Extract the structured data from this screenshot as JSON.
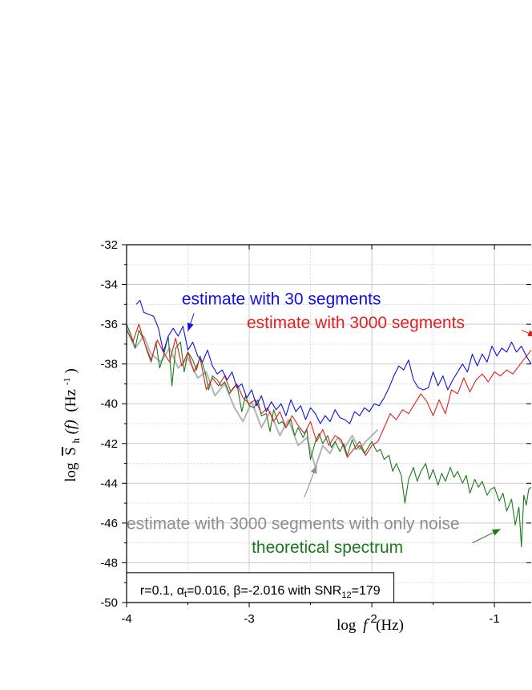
{
  "chart_data": {
    "type": "line",
    "xlabel": {
      "base": "log",
      "var": "f",
      "unit": "(Hz)"
    },
    "ylabel": {
      "base": "log",
      "sym": "S",
      "sub": "h",
      "arg": "(f)",
      "unit": "(Hz",
      "exp": "-1",
      "close": ")"
    },
    "xlim": [
      -4,
      -0.7
    ],
    "ylim": [
      -50,
      -32
    ],
    "x_ticks": [
      -4,
      -3,
      -2,
      -1
    ],
    "x_tick_labels": [
      "-4",
      "-3",
      "-2",
      "-1"
    ],
    "y_ticks": [
      -50,
      -48,
      -46,
      -44,
      -42,
      -40,
      -38,
      -36,
      -34,
      -32
    ],
    "y_tick_labels": [
      "-50",
      "-48",
      "-46",
      "-44",
      "-42",
      "-40",
      "-38",
      "-36",
      "-34",
      "-32"
    ],
    "grid": true,
    "series": [
      {
        "name": "estimate with 3000 segments  with only noise",
        "color": "#b4b4b4",
        "x": [
          -4.0,
          -3.93,
          -3.86,
          -3.8,
          -3.72,
          -3.65,
          -3.58,
          -3.5,
          -3.42,
          -3.35,
          -3.28,
          -3.2,
          -3.12,
          -3.05,
          -2.98,
          -2.9,
          -2.83,
          -2.75,
          -2.68,
          -2.6,
          -2.53,
          -2.46,
          -2.4,
          -2.34,
          -2.28,
          -2.22,
          -2.16,
          -2.1,
          -2.05,
          -2.0,
          -1.95
        ],
        "y": [
          -36.2,
          -37.2,
          -36.6,
          -37.5,
          -37.9,
          -37.2,
          -38.2,
          -37.7,
          -38.7,
          -38.4,
          -39.6,
          -39.0,
          -40.2,
          -40.9,
          -39.9,
          -41.2,
          -40.4,
          -41.6,
          -40.8,
          -42.1,
          -41.7,
          -43.2,
          -42.1,
          -42.5,
          -41.7,
          -42.2,
          -41.6,
          -42.3,
          -41.9,
          -41.6,
          -41.3
        ]
      },
      {
        "name": "theoretical spectrum",
        "color": "#1a7a1a",
        "x": [
          -4.0,
          -3.96,
          -3.93,
          -3.9,
          -3.86,
          -3.83,
          -3.8,
          -3.76,
          -3.73,
          -3.7,
          -3.66,
          -3.63,
          -3.6,
          -3.56,
          -3.53,
          -3.5,
          -3.46,
          -3.43,
          -3.4,
          -3.36,
          -3.33,
          -3.3,
          -3.26,
          -3.23,
          -3.2,
          -3.16,
          -3.13,
          -3.1,
          -3.06,
          -3.03,
          -3.0,
          -2.96,
          -2.93,
          -2.9,
          -2.86,
          -2.83,
          -2.8,
          -2.76,
          -2.73,
          -2.7,
          -2.66,
          -2.63,
          -2.6,
          -2.56,
          -2.53,
          -2.5,
          -2.46,
          -2.43,
          -2.4,
          -2.36,
          -2.33,
          -2.3,
          -2.26,
          -2.23,
          -2.2,
          -2.16,
          -2.13,
          -2.1,
          -2.06,
          -2.03,
          -2.0,
          -1.96,
          -1.93,
          -1.9,
          -1.86,
          -1.83,
          -1.8,
          -1.76,
          -1.73,
          -1.7,
          -1.66,
          -1.63,
          -1.6,
          -1.56,
          -1.53,
          -1.5,
          -1.46,
          -1.43,
          -1.4,
          -1.36,
          -1.33,
          -1.3,
          -1.26,
          -1.23,
          -1.2,
          -1.16,
          -1.13,
          -1.1,
          -1.06,
          -1.03,
          -1.0,
          -0.96,
          -0.93,
          -0.9,
          -0.86,
          -0.83,
          -0.8,
          -0.78,
          -0.76,
          -0.74,
          -0.72,
          -0.7
        ],
        "y": [
          -36.0,
          -36.6,
          -37.2,
          -36.3,
          -36.8,
          -37.4,
          -37.9,
          -36.9,
          -38.2,
          -37.6,
          -36.6,
          -39.1,
          -37.2,
          -36.9,
          -38.4,
          -37.4,
          -37.8,
          -38.3,
          -37.6,
          -38.4,
          -39.3,
          -38.6,
          -38.8,
          -39.1,
          -38.9,
          -39.5,
          -39.2,
          -39.0,
          -40.4,
          -39.6,
          -40.1,
          -40.2,
          -39.8,
          -40.6,
          -40.5,
          -41.4,
          -40.3,
          -41.0,
          -40.9,
          -41.2,
          -40.8,
          -41.6,
          -41.2,
          -41.7,
          -41.3,
          -42.8,
          -41.9,
          -41.5,
          -42.0,
          -41.6,
          -42.2,
          -41.9,
          -42.4,
          -42.0,
          -42.6,
          -41.8,
          -42.3,
          -42.1,
          -42.5,
          -42.2,
          -41.9,
          -42.4,
          -42.3,
          -42.8,
          -42.6,
          -43.4,
          -43.0,
          -43.6,
          -45.0,
          -43.8,
          -43.2,
          -43.9,
          -43.4,
          -43.0,
          -43.8,
          -43.3,
          -44.1,
          -43.5,
          -43.9,
          -43.2,
          -43.7,
          -43.4,
          -44.0,
          -43.6,
          -44.5,
          -43.8,
          -44.2,
          -43.9,
          -44.6,
          -44.3,
          -44.2,
          -44.9,
          -44.5,
          -45.4,
          -44.8,
          -46.1,
          -45.2,
          -47.2,
          -44.6,
          -45.1,
          -44.3,
          -44.2
        ]
      },
      {
        "name": "estimate with 3000 segments",
        "color": "#e02020",
        "x": [
          -4.0,
          -3.95,
          -3.9,
          -3.85,
          -3.8,
          -3.75,
          -3.7,
          -3.65,
          -3.6,
          -3.55,
          -3.5,
          -3.45,
          -3.4,
          -3.35,
          -3.3,
          -3.25,
          -3.2,
          -3.15,
          -3.1,
          -3.05,
          -3.0,
          -2.95,
          -2.9,
          -2.85,
          -2.8,
          -2.75,
          -2.7,
          -2.65,
          -2.6,
          -2.55,
          -2.5,
          -2.45,
          -2.4,
          -2.35,
          -2.3,
          -2.25,
          -2.2,
          -2.15,
          -2.1,
          -2.05,
          -2.0,
          -1.95,
          -1.9,
          -1.85,
          -1.8,
          -1.75,
          -1.7,
          -1.65,
          -1.6,
          -1.55,
          -1.5,
          -1.45,
          -1.4,
          -1.35,
          -1.3,
          -1.25,
          -1.2,
          -1.15,
          -1.1,
          -1.05,
          -1.0,
          -0.95,
          -0.9,
          -0.85,
          -0.8,
          -0.75,
          -0.7
        ],
        "y": [
          -36.3,
          -36.9,
          -36.0,
          -37.0,
          -37.8,
          -36.8,
          -37.4,
          -37.9,
          -36.7,
          -38.1,
          -37.4,
          -38.4,
          -37.7,
          -39.3,
          -38.7,
          -39.1,
          -38.6,
          -39.4,
          -39.0,
          -39.7,
          -40.0,
          -39.8,
          -40.5,
          -40.2,
          -40.9,
          -40.4,
          -41.2,
          -40.6,
          -41.1,
          -41.5,
          -40.9,
          -41.9,
          -41.3,
          -42.1,
          -41.6,
          -41.8,
          -42.7,
          -42.3,
          -41.9,
          -42.6,
          -42.1,
          -41.9,
          -41.2,
          -40.5,
          -40.8,
          -40.3,
          -40.5,
          -40.0,
          -39.5,
          -39.9,
          -40.6,
          -39.8,
          -40.5,
          -39.3,
          -39.5,
          -38.7,
          -39.4,
          -38.8,
          -38.5,
          -38.9,
          -38.4,
          -38.6,
          -38.3,
          -38.5,
          -38.1,
          -37.7,
          -37.3
        ]
      },
      {
        "name": "estimate with 30 segments",
        "color": "#1010e0",
        "x": [
          -3.92,
          -3.89,
          -3.86,
          -3.82,
          -3.78,
          -3.74,
          -3.7,
          -3.66,
          -3.62,
          -3.58,
          -3.54,
          -3.5,
          -3.46,
          -3.42,
          -3.38,
          -3.34,
          -3.3,
          -3.26,
          -3.22,
          -3.18,
          -3.14,
          -3.1,
          -3.06,
          -3.02,
          -2.98,
          -2.94,
          -2.9,
          -2.86,
          -2.82,
          -2.78,
          -2.74,
          -2.7,
          -2.66,
          -2.62,
          -2.58,
          -2.54,
          -2.5,
          -2.46,
          -2.42,
          -2.38,
          -2.34,
          -2.3,
          -2.26,
          -2.22,
          -2.18,
          -2.14,
          -2.1,
          -2.06,
          -2.02,
          -1.98,
          -1.94,
          -1.9,
          -1.86,
          -1.82,
          -1.78,
          -1.74,
          -1.7,
          -1.66,
          -1.62,
          -1.58,
          -1.54,
          -1.5,
          -1.46,
          -1.42,
          -1.38,
          -1.34,
          -1.3,
          -1.26,
          -1.22,
          -1.18,
          -1.14,
          -1.1,
          -1.06,
          -1.02,
          -0.98,
          -0.94,
          -0.9,
          -0.86,
          -0.82,
          -0.78,
          -0.74,
          -0.7
        ],
        "y": [
          -35.0,
          -34.8,
          -35.4,
          -35.5,
          -35.6,
          -36.2,
          -37.4,
          -36.6,
          -36.2,
          -36.6,
          -36.1,
          -37.3,
          -36.9,
          -37.6,
          -37.9,
          -37.3,
          -38.1,
          -38.5,
          -38.3,
          -38.8,
          -38.4,
          -39.2,
          -39.0,
          -39.7,
          -39.3,
          -40.1,
          -39.6,
          -40.4,
          -39.9,
          -40.3,
          -40.0,
          -40.6,
          -39.8,
          -40.4,
          -40.1,
          -40.8,
          -40.2,
          -40.5,
          -41.0,
          -40.6,
          -40.9,
          -40.3,
          -40.7,
          -40.8,
          -41.0,
          -40.4,
          -40.6,
          -40.2,
          -40.4,
          -40.0,
          -40.1,
          -39.7,
          -39.2,
          -38.6,
          -38.1,
          -38.3,
          -37.8,
          -38.8,
          -39.2,
          -39.3,
          -39.2,
          -38.4,
          -39.1,
          -38.6,
          -39.3,
          -38.8,
          -38.4,
          -38.0,
          -38.4,
          -37.5,
          -38.1,
          -37.5,
          -37.9,
          -37.1,
          -37.6,
          -37.2,
          -37.4,
          -36.9,
          -37.4,
          -37.1,
          -37.6,
          -38.0
        ]
      }
    ],
    "annotations": [
      {
        "name": "annotation-30-segments",
        "text": "estimate with 30 segments",
        "color": "#1010e0",
        "x": -3.55,
        "y": -35.0,
        "arrow": [
          [
            -3.45,
            -35.45
          ],
          [
            -3.5,
            -36.35
          ]
        ]
      },
      {
        "name": "annotation-3000-segments",
        "text": "estimate with 3000 segments",
        "color": "#e02020",
        "x": -3.02,
        "y": -36.2,
        "arrow": [
          [
            -0.78,
            -36.3
          ],
          [
            -0.66,
            -36.6
          ]
        ]
      },
      {
        "name": "annotation-only-noise",
        "text": "estimate with 3000 segments  with only noise",
        "color": "#8e8e8e",
        "x": -4.0,
        "y": -46.3,
        "arrow": [
          [
            -2.55,
            -44.7
          ],
          [
            -2.45,
            -43.1
          ]
        ]
      },
      {
        "name": "annotation-theoretical",
        "text": "theoretical spectrum",
        "color": "#1a7a1a",
        "x": -2.98,
        "y": -47.5,
        "arrow": [
          [
            -1.18,
            -47.0
          ],
          [
            -0.95,
            -46.3
          ]
        ]
      }
    ],
    "params_box": {
      "x0": -4.0,
      "x1": -1.82,
      "y0": -50.0,
      "y1": -48.5,
      "pre": "r=0.1,  ",
      "alpha": "α",
      "alpha_sub": "t",
      "mid": "=0.016,  β=-2.016 with SNR",
      "snr_sub": "12",
      "post": "=179"
    }
  }
}
